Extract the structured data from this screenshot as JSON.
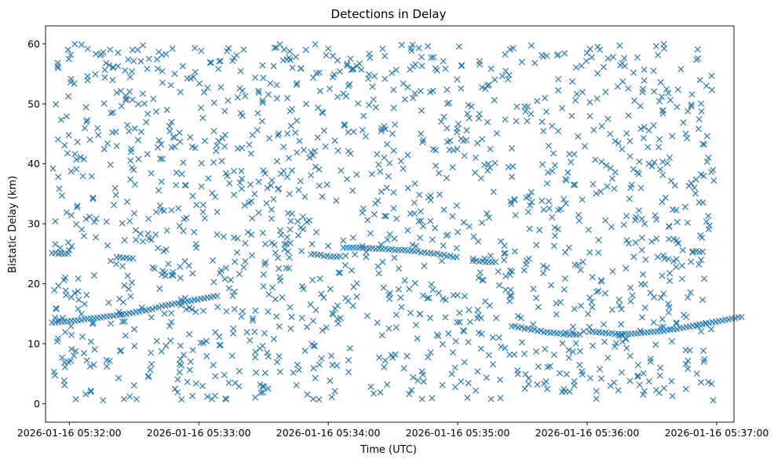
{
  "chart_data": {
    "type": "scatter",
    "title": "Detections in Delay",
    "xlabel": "Time (UTC)",
    "ylabel": "Bistatic Delay (km)",
    "marker": "x",
    "color": "#1f77b4",
    "grid": false,
    "legend": "none",
    "xlim": [
      "2026-01-16 05:31:49",
      "2026-01-16 05:37:08"
    ],
    "ylim": [
      -3.1,
      63
    ],
    "x_ticks": [
      "2026-01-16 05:32:00",
      "2026-01-16 05:33:00",
      "2026-01-16 05:34:00",
      "2026-01-16 05:35:00",
      "2026-01-16 05:36:00",
      "2026-01-16 05:37:00"
    ],
    "y_ticks": [
      0,
      10,
      20,
      30,
      40,
      50,
      60
    ],
    "x_start": "2026-01-16 05:31:52",
    "x_end": "2026-01-16 05:36:59",
    "x_step_seconds": 3,
    "series": [
      {
        "track": "lower",
        "values": [
          13.5,
          13.6,
          13.7,
          13.8,
          13.9,
          14.1,
          14.2,
          14.3,
          14.5,
          14.6,
          14.8,
          14.9,
          15.1,
          15.3,
          15.5,
          15.7,
          16.0,
          16.3,
          16.5,
          16.7,
          16.9,
          17.1,
          17.3,
          17.5,
          17.7,
          17.9,
          null,
          null,
          null,
          null,
          null,
          null,
          null,
          null,
          null,
          null,
          null,
          null,
          null,
          null,
          null,
          null,
          null,
          null,
          null,
          null,
          null,
          null,
          null,
          null,
          null,
          null,
          null,
          null,
          null,
          null,
          null,
          null,
          null,
          null,
          null,
          null,
          null,
          null,
          null,
          null,
          null,
          null,
          null,
          null,
          null,
          12.9,
          12.7,
          12.5,
          12.3,
          12.1,
          11.9,
          11.8,
          11.7,
          11.6,
          11.5,
          11.5,
          null,
          12.0,
          11.9,
          11.8,
          11.7,
          11.6,
          11.6,
          11.6,
          11.7,
          11.8,
          11.9,
          12.0,
          12.1,
          12.3,
          12.4,
          12.6,
          12.8,
          13.0,
          13.2,
          13.4,
          13.6,
          13.8,
          14.0,
          14.2,
          14.4
        ]
      },
      {
        "track": "upper",
        "values": [
          25.1,
          25.0,
          25.0,
          null,
          null,
          null,
          null,
          null,
          null,
          null,
          24.4,
          24.3,
          24.2,
          null,
          null,
          null,
          null,
          null,
          null,
          null,
          null,
          null,
          null,
          null,
          null,
          null,
          null,
          null,
          null,
          null,
          null,
          null,
          null,
          null,
          null,
          null,
          null,
          null,
          null,
          null,
          24.9,
          24.8,
          24.6,
          24.5,
          24.5,
          26.0,
          26.0,
          26.0,
          25.9,
          25.9,
          25.8,
          25.8,
          25.7,
          25.6,
          25.6,
          25.5,
          25.4,
          25.2,
          25.1,
          25.0,
          24.8,
          24.6,
          24.4,
          null,
          null,
          23.8,
          23.7,
          23.6,
          23.6,
          null,
          null,
          null,
          null,
          null,
          null,
          null,
          null,
          null,
          null,
          null,
          null,
          null,
          null,
          null,
          null,
          null,
          null,
          null,
          null,
          null,
          null,
          null,
          null,
          null,
          null,
          null,
          null,
          null,
          null,
          25.4,
          25.3,
          null,
          null
        ]
      }
    ],
    "noise": {
      "count": 1500,
      "range_km": [
        0.5,
        60
      ]
    }
  }
}
